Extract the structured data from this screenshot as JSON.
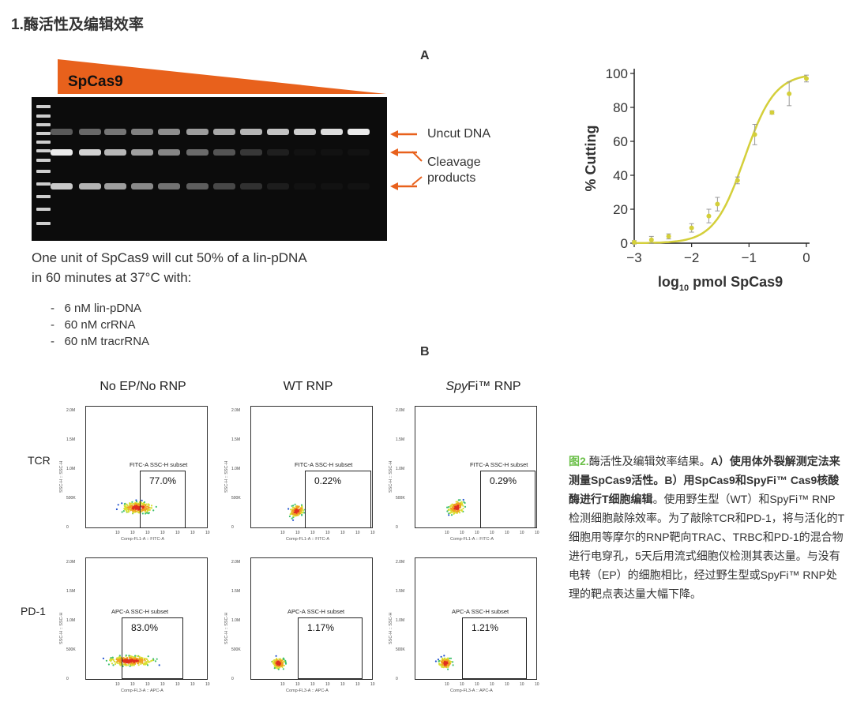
{
  "section_title": "1.酶活性及编辑效率",
  "panel_a_label": "A",
  "panel_b_label": "B",
  "gel": {
    "enzyme_label": "SpCas9",
    "uncut_label": "Uncut DNA",
    "cleavage_label_line1": "Cleavage",
    "cleavage_label_line2": "products",
    "accent_color": "#e8611c"
  },
  "description": {
    "line1": "One unit of SpCas9 will cut 50% of a lin-pDNA",
    "line2": "in 60 minutes at 37°C with:",
    "bullets": [
      "6 nM lin-pDNA",
      "60 nM crRNA",
      "60 nM tracrRNA"
    ]
  },
  "chart_data": {
    "type": "line",
    "title": "",
    "xlabel_prefix": "log",
    "xlabel_sub": "10",
    "xlabel_suffix": " pmol SpCas9",
    "ylabel": "% Cutting",
    "xlim": [
      -3,
      0
    ],
    "ylim": [
      0,
      100
    ],
    "x_ticks": [
      "−3",
      "−2",
      "−1",
      "0"
    ],
    "y_ticks": [
      "0",
      "20",
      "40",
      "60",
      "80",
      "100"
    ],
    "series": [
      {
        "name": "SpCas9",
        "color": "#d4cf3a",
        "x": [
          -3,
          -2.7,
          -2.4,
          -2.0,
          -1.7,
          -1.55,
          -1.2,
          -0.9,
          -0.6,
          -0.3,
          0
        ],
        "y": [
          0.5,
          2,
          4,
          9,
          16,
          23,
          37,
          64,
          77,
          88,
          97
        ],
        "err": [
          1,
          2,
          1.5,
          2.5,
          4,
          4,
          2,
          6,
          1,
          7,
          2
        ]
      }
    ]
  },
  "flow": {
    "column_titles": [
      "No EP/No RNP",
      "WT RNP",
      "SpyFi™ RNP"
    ],
    "column3_italic": "Spy",
    "column3_rest": "Fi™ RNP",
    "row_labels": [
      "TCR",
      "PD-1"
    ],
    "y_ticks": [
      "2.0M",
      "1.5M",
      "1.0M",
      "500K",
      "0"
    ],
    "y_axis_label": "SSC-H :: SSC-H",
    "x_ticks": [
      "10",
      "10",
      "10",
      "10",
      "10",
      "10",
      "10"
    ],
    "tcr": {
      "gate_title": "FITC-A SSC-H subset",
      "x_axis_label": "Comp-FL1-A :: FITC-A",
      "values": [
        "77.0%",
        "0.22%",
        "0.29%"
      ]
    },
    "pd1": {
      "gate_title": "APC-A SSC-H subset",
      "x_axis_label": "Comp-FL3-A :: APC-A",
      "values": [
        "83.0%",
        "1.17%",
        "1.21%"
      ]
    }
  },
  "caption": {
    "fig": "图2.",
    "text1": "酶活性及编辑效率结果。",
    "bold1": "A）使用体外裂解测定法来测量SpCas9活性。B）用SpCas9和SpyFi™ Cas9核酸酶进行T细胞编辑",
    "text2": "。使用野生型（WT）和SpyFi™ RNP检测细胞敲除效率。为了敲除TCR和PD-1，将与活化的T细胞用等摩尔的RNP靶向TRAC、TRBC和PD-1的混合物进行电穿孔，5天后用流式细胞仪检测其表达量。与没有电转（EP）的细胞相比，经过野生型或SpyFi™ RNP处理的靶点表达量大幅下降。"
  }
}
